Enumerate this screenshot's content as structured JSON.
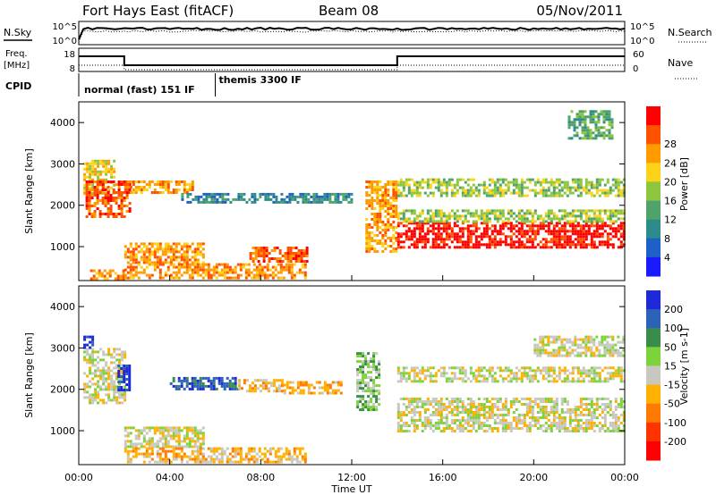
{
  "header": {
    "station": "Fort Hays East (fitACF)",
    "beam": "Beam 08",
    "date": "05/Nov/2011"
  },
  "panels_top": {
    "nsky_label": "N.Sky",
    "nsky_ticks": [
      "10^5",
      "10^0"
    ],
    "nsearch_label": "N.Search",
    "nsearch_ticks": [
      "10^5",
      "10^0"
    ],
    "freq_label": "Freq.",
    "freq_unit": "[MHz]",
    "freq_ticks": [
      "18",
      "8"
    ],
    "nave_label": "Nave",
    "nave_ticks": [
      "60",
      "0"
    ],
    "cpid_label": "CPID",
    "cpid_segments": [
      {
        "start_hour": 0,
        "end_hour": 6,
        "label": "normal (fast) 151 IF"
      },
      {
        "start_hour": 6,
        "end_hour": 24,
        "label": "themis 3300 IF"
      }
    ]
  },
  "axes": {
    "xlabel": "Time UT",
    "x_ticks": [
      "00:00",
      "04:00",
      "08:00",
      "12:00",
      "16:00",
      "20:00",
      "00:00"
    ],
    "x_range_hours": [
      0,
      24
    ],
    "ylabel": "Slant Range [km]",
    "y_ticks": [
      "1000",
      "2000",
      "3000",
      "4000"
    ],
    "y_range_km": [
      180,
      4500
    ]
  },
  "chart_data": [
    {
      "type": "heatmap",
      "quantity": "Power",
      "x_hours": [
        0,
        24
      ],
      "y_km": [
        180,
        4500
      ],
      "colorbar": {
        "label": "Power [dB]",
        "ticks": [
          "4",
          "8",
          "12",
          "16",
          "20",
          "24",
          "28"
        ],
        "colors": [
          "#1a1aff",
          "#1f5fc8",
          "#2e8b8b",
          "#4fa36a",
          "#8cc63f",
          "#ffd21a",
          "#ff9a00",
          "#ff5200",
          "#ff0000"
        ]
      },
      "regions": [
        {
          "x": [
            0.2,
            1.6
          ],
          "y": [
            2300,
            3100
          ],
          "level": 5
        },
        {
          "x": [
            0.3,
            2.2
          ],
          "y": [
            1700,
            2600
          ],
          "level": 7
        },
        {
          "x": [
            0.5,
            2.0
          ],
          "y": [
            250,
            450
          ],
          "level": 6
        },
        {
          "x": [
            2.0,
            5.0
          ],
          "y": [
            2300,
            2600
          ],
          "level": 6
        },
        {
          "x": [
            2.0,
            5.5
          ],
          "y": [
            600,
            1100
          ],
          "level": 6
        },
        {
          "x": [
            2.0,
            10.0
          ],
          "y": [
            250,
            600
          ],
          "level": 6
        },
        {
          "x": [
            4.5,
            12.0
          ],
          "y": [
            2100,
            2300
          ],
          "level": 2
        },
        {
          "x": [
            7.5,
            10.0
          ],
          "y": [
            650,
            1000
          ],
          "level": 7
        },
        {
          "x": [
            12.6,
            14.0
          ],
          "y": [
            900,
            2600
          ],
          "level": 6
        },
        {
          "x": [
            14.0,
            24.0
          ],
          "y": [
            1000,
            1600
          ],
          "level": 8
        },
        {
          "x": [
            14.0,
            24.0
          ],
          "y": [
            1600,
            1900
          ],
          "level": 4
        },
        {
          "x": [
            14.0,
            24.0
          ],
          "y": [
            2200,
            2650
          ],
          "level": 4
        },
        {
          "x": [
            21.5,
            23.5
          ],
          "y": [
            3600,
            4300
          ],
          "level": 3
        }
      ]
    },
    {
      "type": "heatmap",
      "quantity": "Velocity",
      "x_hours": [
        0,
        24
      ],
      "y_km": [
        180,
        4500
      ],
      "colorbar": {
        "label": "Velocity [m s-1]",
        "ticks": [
          "200",
          "100",
          "50",
          "15",
          "-15",
          "-50",
          "-100",
          "-200"
        ],
        "colors": [
          "#1e2ad8",
          "#2c62b8",
          "#3a8c4a",
          "#7dd33a",
          "#c8c8c0",
          "#ffb000",
          "#ff7a00",
          "#ff3300",
          "#ff0000"
        ]
      },
      "regions": [
        {
          "x": [
            0.2,
            2.0
          ],
          "y": [
            1700,
            3000
          ],
          "level": 4
        },
        {
          "x": [
            0.2,
            0.6
          ],
          "y": [
            3000,
            3300
          ],
          "level": 0
        },
        {
          "x": [
            1.7,
            2.2
          ],
          "y": [
            2000,
            2600
          ],
          "level": 0
        },
        {
          "x": [
            2.0,
            5.5
          ],
          "y": [
            600,
            1100
          ],
          "level": 4
        },
        {
          "x": [
            2.0,
            10.0
          ],
          "y": [
            250,
            600
          ],
          "level": 5
        },
        {
          "x": [
            4.0,
            7.0
          ],
          "y": [
            2000,
            2300
          ],
          "level": 1
        },
        {
          "x": [
            7.0,
            9.0
          ],
          "y": [
            1950,
            2250
          ],
          "level": 5
        },
        {
          "x": [
            9.0,
            11.5
          ],
          "y": [
            1900,
            2200
          ],
          "level": 5
        },
        {
          "x": [
            12.2,
            13.2
          ],
          "y": [
            1500,
            2900
          ],
          "level": 3
        },
        {
          "x": [
            14.0,
            24.0
          ],
          "y": [
            1000,
            1800
          ],
          "level": 4
        },
        {
          "x": [
            14.0,
            24.0
          ],
          "y": [
            2200,
            2550
          ],
          "level": 4
        },
        {
          "x": [
            20.0,
            24.0
          ],
          "y": [
            2800,
            3300
          ],
          "level": 4
        }
      ]
    }
  ]
}
